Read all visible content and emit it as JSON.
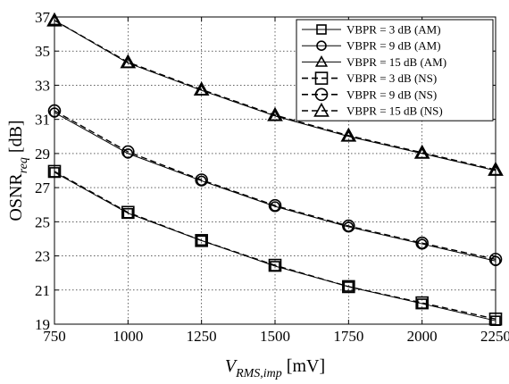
{
  "chart_data": {
    "type": "line",
    "xlabel": {
      "main": "V",
      "sub": "RMS,imp",
      "unit": "[mV]"
    },
    "ylabel": {
      "main": "OSNR",
      "sub": "req",
      "unit": "[dB]"
    },
    "x": [
      750,
      1000,
      1250,
      1500,
      1750,
      2000,
      2250
    ],
    "xlim": [
      750,
      2250
    ],
    "ylim": [
      19,
      37
    ],
    "xticks": [
      750,
      1000,
      1250,
      1500,
      1750,
      2000,
      2250
    ],
    "yticks": [
      19,
      21,
      23,
      25,
      27,
      29,
      31,
      33,
      35,
      37
    ],
    "grid": true,
    "legend_position": "top-right",
    "series": [
      {
        "name": "VBPR = 3 dB (AM)",
        "marker": "square",
        "dash": "solid",
        "markersize": "small",
        "values": [
          27.9,
          25.5,
          23.9,
          22.4,
          21.2,
          20.2,
          19.2
        ]
      },
      {
        "name": "VBPR = 9 dB (AM)",
        "marker": "circle",
        "dash": "solid",
        "markersize": "small",
        "values": [
          31.4,
          29.0,
          27.4,
          25.9,
          24.7,
          23.7,
          22.7
        ]
      },
      {
        "name": "VBPR = 15 dB (AM)",
        "marker": "triangle",
        "dash": "solid",
        "markersize": "small",
        "values": [
          36.8,
          34.3,
          32.7,
          31.2,
          30.0,
          29.0,
          28.0
        ]
      },
      {
        "name": "VBPR = 3 dB (NS)",
        "marker": "square",
        "dash": "dashed",
        "markersize": "large",
        "values": [
          27.95,
          25.55,
          23.9,
          22.45,
          21.2,
          20.25,
          19.3
        ]
      },
      {
        "name": "VBPR = 9 dB (NS)",
        "marker": "circle",
        "dash": "dashed",
        "markersize": "large",
        "values": [
          31.5,
          29.1,
          27.45,
          25.95,
          24.75,
          23.75,
          22.8
        ]
      },
      {
        "name": "VBPR = 15 dB (NS)",
        "marker": "triangle",
        "dash": "dashed",
        "markersize": "large",
        "values": [
          36.8,
          34.35,
          32.75,
          31.25,
          30.05,
          29.05,
          28.05
        ]
      }
    ]
  },
  "colors": {
    "line": "#000000",
    "grid": "#000000",
    "background": "#ffffff"
  }
}
